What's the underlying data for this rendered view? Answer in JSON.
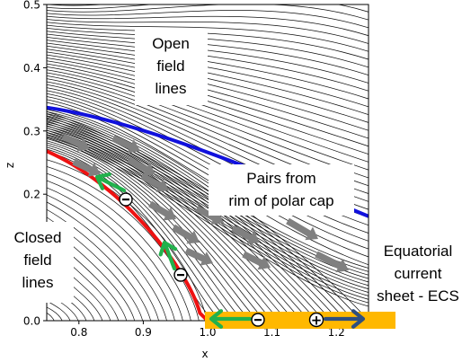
{
  "axes": {
    "xlabel": "x",
    "ylabel": "z",
    "xlim": [
      0.75,
      1.25
    ],
    "ylim": [
      0.0,
      0.5
    ],
    "xticks": [
      {
        "value": 0.8,
        "label": "0.8"
      },
      {
        "value": 0.9,
        "label": "0.9"
      },
      {
        "value": 1.0,
        "label": "1.0"
      },
      {
        "value": 1.1,
        "label": "1.1"
      },
      {
        "value": 1.2,
        "label": "1.2"
      }
    ],
    "yticks": [
      {
        "value": 0.0,
        "label": "0.0"
      },
      {
        "value": 0.1,
        "label": "0.1"
      },
      {
        "value": 0.2,
        "label": "0.2"
      },
      {
        "value": 0.3,
        "label": "0.3"
      },
      {
        "value": 0.4,
        "label": "0.4"
      },
      {
        "value": 0.5,
        "label": "0.5"
      }
    ]
  },
  "labels": {
    "open_field": [
      "Open",
      "field",
      "lines"
    ],
    "closed_field": [
      "Closed",
      "field",
      "lines"
    ],
    "pairs": [
      "Pairs from",
      "rim of polar cap"
    ],
    "ecs": [
      "Equatorial",
      "current",
      "sheet - ECS"
    ]
  },
  "charges": {
    "negative": "⊖",
    "positive": "+"
  },
  "colors": {
    "separatrix": "#ee1111",
    "open_boundary": "#1111dd",
    "ecs_sheet": "#ffb800",
    "green_arrow": "#22b14c",
    "navy_arrow": "#2f4f7f",
    "gray_arrow": "#808080",
    "field_line": "#111111"
  }
}
